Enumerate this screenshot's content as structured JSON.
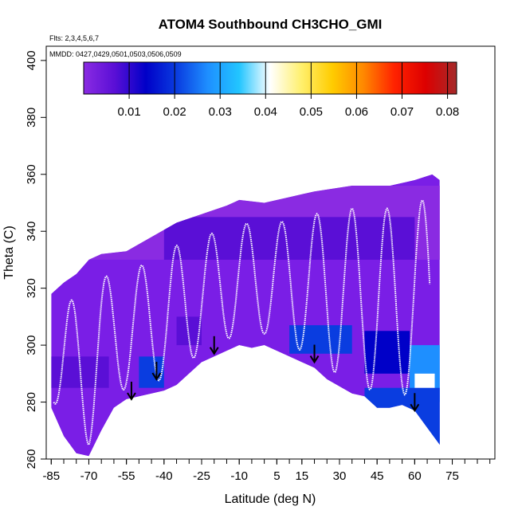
{
  "chart_data": {
    "type": "heatmap",
    "title": "ATOM4 Southbound CH3CHO_GMI",
    "flights_note": "Flts: 2,3,4,5,6,7",
    "dates_note": "MMDD: 0427,0429,0501,0503,0506,0509",
    "xlabel": "Latitude (deg N)",
    "ylabel": "Theta (C)",
    "xlim": [
      -87,
      92
    ],
    "ylim": [
      260,
      405
    ],
    "x_ticks": [
      -85,
      -70,
      -55,
      -40,
      -25,
      -10,
      5,
      15,
      30,
      45,
      60,
      75
    ],
    "y_ticks": [
      260,
      280,
      300,
      320,
      340,
      360,
      380,
      400
    ],
    "colorbar": {
      "range": [
        0,
        0.082
      ],
      "ticks": [
        0.01,
        0.02,
        0.03,
        0.04,
        0.05,
        0.06,
        0.07,
        0.08
      ],
      "colors": [
        "#8a2be2",
        "#5a0fd6",
        "#0000c8",
        "#0a3de0",
        "#1e8fff",
        "#22c5ff",
        "#ffffff",
        "#fff06e",
        "#ffcc00",
        "#ff8800",
        "#ff2200",
        "#dd0000",
        "#a52a2a"
      ]
    },
    "field": {
      "top_boundary": [
        [
          -85,
          318
        ],
        [
          -80,
          322
        ],
        [
          -75,
          325
        ],
        [
          -70,
          330
        ],
        [
          -65,
          332
        ],
        [
          -55,
          333
        ],
        [
          -45,
          338
        ],
        [
          -35,
          343
        ],
        [
          -25,
          346
        ],
        [
          -15,
          349
        ],
        [
          -10,
          351
        ],
        [
          0,
          350
        ],
        [
          10,
          352
        ],
        [
          20,
          354
        ],
        [
          35,
          356
        ],
        [
          50,
          356
        ],
        [
          60,
          358
        ],
        [
          67,
          360
        ],
        [
          70,
          358
        ]
      ],
      "bottom_boundary": [
        [
          -85,
          278
        ],
        [
          -80,
          268
        ],
        [
          -75,
          262
        ],
        [
          -70,
          261
        ],
        [
          -65,
          270
        ],
        [
          -60,
          278
        ],
        [
          -55,
          281
        ],
        [
          -45,
          283
        ],
        [
          -40,
          284
        ],
        [
          -35,
          286
        ],
        [
          -25,
          294
        ],
        [
          -15,
          298
        ],
        [
          -10,
          300
        ],
        [
          -5,
          299
        ],
        [
          0,
          300
        ],
        [
          10,
          296
        ],
        [
          20,
          292
        ],
        [
          25,
          288
        ],
        [
          35,
          283
        ],
        [
          40,
          282
        ],
        [
          45,
          278
        ],
        [
          50,
          278
        ],
        [
          55,
          279
        ],
        [
          60,
          277
        ],
        [
          65,
          271
        ],
        [
          70,
          265
        ]
      ],
      "bands": [
        {
          "lat": [
            -85,
            72
          ],
          "theta": [
            330,
            356
          ],
          "value": 0.006
        },
        {
          "lat": [
            -40,
            60
          ],
          "theta": [
            330,
            345
          ],
          "value": 0.011
        },
        {
          "lat": [
            -85,
            -62
          ],
          "theta": [
            285,
            296
          ],
          "value": 0.012
        },
        {
          "lat": [
            -50,
            -40
          ],
          "theta": [
            285,
            296
          ],
          "value": 0.022
        },
        {
          "lat": [
            -35,
            -25
          ],
          "theta": [
            300,
            310
          ],
          "value": 0.009
        },
        {
          "lat": [
            10,
            35
          ],
          "theta": [
            297,
            307
          ],
          "value": 0.021
        },
        {
          "lat": [
            40,
            58
          ],
          "theta": [
            290,
            305
          ],
          "value": 0.018
        },
        {
          "lat": [
            58,
            72
          ],
          "theta": [
            280,
            300
          ],
          "value": 0.026
        },
        {
          "lat": [
            60,
            68
          ],
          "theta": [
            283,
            290
          ],
          "value": 0.038
        },
        {
          "lat": [
            40,
            72
          ],
          "theta": [
            265,
            285
          ],
          "value": 0.024
        }
      ],
      "arrows": [
        [
          -53,
          281
        ],
        [
          -43,
          288
        ],
        [
          -20,
          297
        ],
        [
          20,
          294
        ],
        [
          60,
          277
        ]
      ]
    }
  }
}
